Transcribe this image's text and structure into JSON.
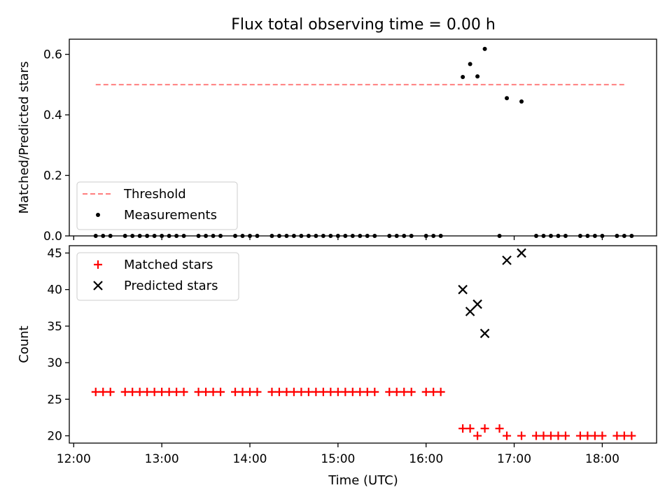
{
  "title": "Flux total observing time = 0.00 h",
  "xlabel": "Time (UTC)",
  "xticks": [
    "12:00",
    "13:00",
    "14:00",
    "15:00",
    "16:00",
    "17:00",
    "18:00"
  ],
  "chart_data": [
    {
      "type": "scatter",
      "ylabel": "Matched/Predicted stars",
      "ylim": [
        0,
        0.65
      ],
      "yticks": [
        "0.0",
        "0.2",
        "0.4",
        "0.6"
      ],
      "grid": false,
      "legend_position": "lower-left",
      "series": [
        {
          "name": "Threshold",
          "style": "dashed-line",
          "color": "#ff7f7f",
          "x": [
            "12:15",
            "18:15"
          ],
          "y": [
            0.5,
            0.5
          ]
        },
        {
          "name": "Measurements",
          "style": "dot",
          "color": "#000000",
          "x": [
            "12:15",
            "12:20",
            "12:25",
            "12:35",
            "12:40",
            "12:45",
            "12:50",
            "12:55",
            "13:00",
            "13:05",
            "13:10",
            "13:15",
            "13:25",
            "13:30",
            "13:35",
            "13:40",
            "13:50",
            "13:55",
            "14:00",
            "14:05",
            "14:15",
            "14:20",
            "14:25",
            "14:30",
            "14:35",
            "14:40",
            "14:45",
            "14:50",
            "14:55",
            "15:00",
            "15:05",
            "15:10",
            "15:15",
            "15:20",
            "15:25",
            "15:35",
            "15:40",
            "15:45",
            "15:50",
            "16:00",
            "16:05",
            "16:10",
            "16:25",
            "16:30",
            "16:35",
            "16:40",
            "16:50",
            "16:55",
            "17:05",
            "17:15",
            "17:20",
            "17:25",
            "17:30",
            "17:35",
            "17:45",
            "17:50",
            "17:55",
            "18:00",
            "18:10",
            "18:15",
            "18:20"
          ],
          "y": [
            0,
            0,
            0,
            0,
            0,
            0,
            0,
            0,
            0,
            0,
            0,
            0,
            0,
            0,
            0,
            0,
            0,
            0,
            0,
            0,
            0,
            0,
            0,
            0,
            0,
            0,
            0,
            0,
            0,
            0,
            0,
            0,
            0,
            0,
            0,
            0,
            0,
            0,
            0,
            0,
            0,
            0,
            0.525,
            0.568,
            0.527,
            0.618,
            0,
            0.455,
            0.444,
            0,
            0,
            0,
            0,
            0,
            0,
            0,
            0,
            0,
            0,
            0,
            0
          ]
        }
      ]
    },
    {
      "type": "scatter",
      "ylabel": "Count",
      "ylim": [
        19,
        46
      ],
      "yticks": [
        "20",
        "25",
        "30",
        "35",
        "40",
        "45"
      ],
      "grid": false,
      "legend_position": "upper-left",
      "series": [
        {
          "name": "Matched stars",
          "marker": "plus",
          "color": "#ff0000",
          "x": [
            "12:15",
            "12:20",
            "12:25",
            "12:35",
            "12:40",
            "12:45",
            "12:50",
            "12:55",
            "13:00",
            "13:05",
            "13:10",
            "13:15",
            "13:25",
            "13:30",
            "13:35",
            "13:40",
            "13:50",
            "13:55",
            "14:00",
            "14:05",
            "14:15",
            "14:20",
            "14:25",
            "14:30",
            "14:35",
            "14:40",
            "14:45",
            "14:50",
            "14:55",
            "15:00",
            "15:05",
            "15:10",
            "15:15",
            "15:20",
            "15:25",
            "15:35",
            "15:40",
            "15:45",
            "15:50",
            "16:00",
            "16:05",
            "16:10",
            "16:25",
            "16:30",
            "16:35",
            "16:40",
            "16:50",
            "16:55",
            "17:05",
            "17:15",
            "17:20",
            "17:25",
            "17:30",
            "17:35",
            "17:45",
            "17:50",
            "17:55",
            "18:00",
            "18:10",
            "18:15",
            "18:20"
          ],
          "y": [
            26,
            26,
            26,
            26,
            26,
            26,
            26,
            26,
            26,
            26,
            26,
            26,
            26,
            26,
            26,
            26,
            26,
            26,
            26,
            26,
            26,
            26,
            26,
            26,
            26,
            26,
            26,
            26,
            26,
            26,
            26,
            26,
            26,
            26,
            26,
            26,
            26,
            26,
            26,
            26,
            26,
            26,
            21,
            21,
            20,
            21,
            21,
            20,
            20,
            20,
            20,
            20,
            20,
            20,
            20,
            20,
            20,
            20,
            20,
            20,
            20
          ]
        },
        {
          "name": "Predicted stars",
          "marker": "x",
          "color": "#000000",
          "x": [
            "16:25",
            "16:30",
            "16:35",
            "16:40",
            "16:55",
            "17:05"
          ],
          "y": [
            40,
            37,
            38,
            34,
            44,
            45
          ]
        }
      ]
    }
  ]
}
